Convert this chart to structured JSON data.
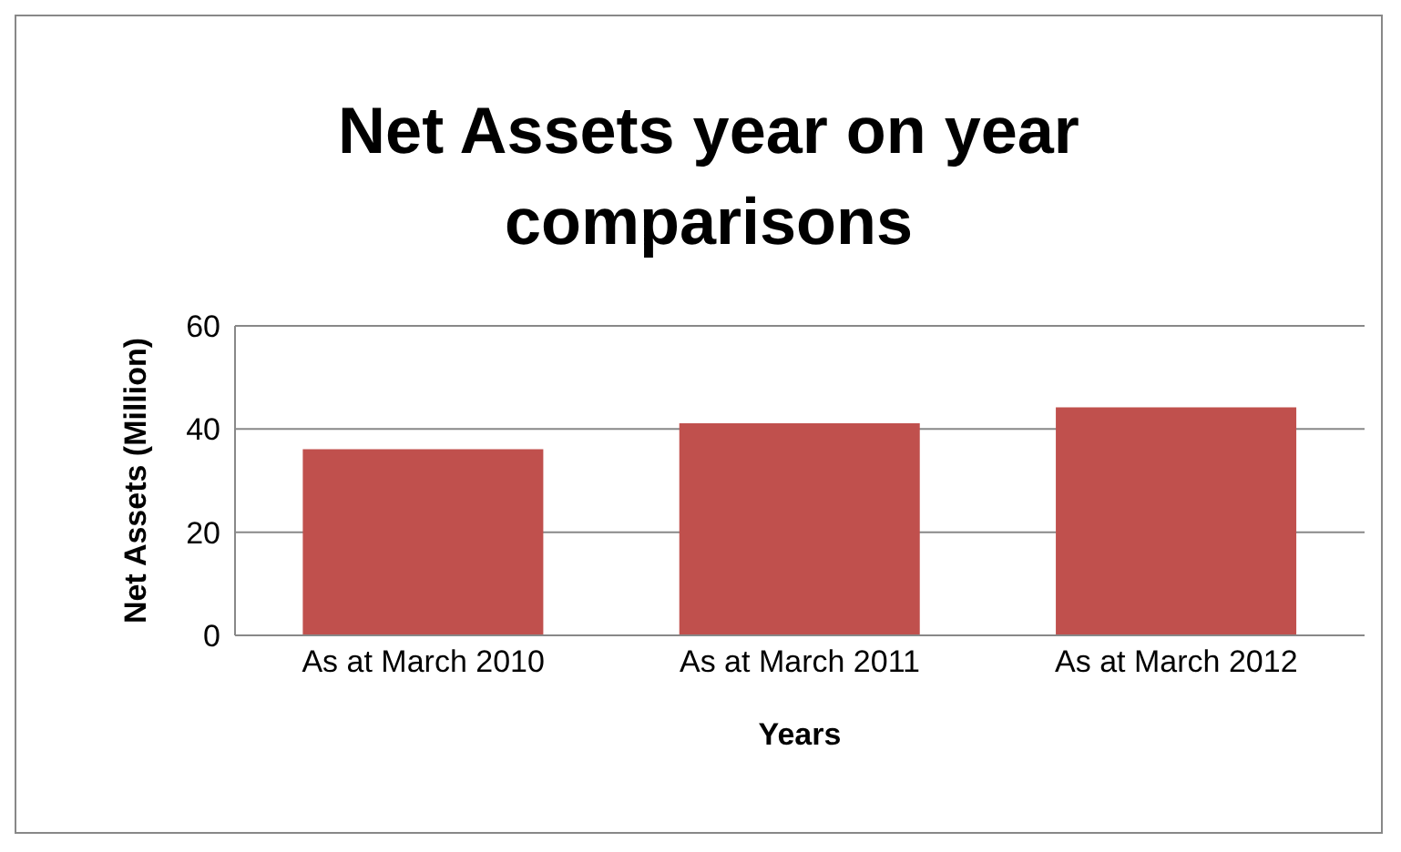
{
  "chart_data": {
    "type": "bar",
    "title": "Net Assets year on year comparisons",
    "xlabel": "Years",
    "ylabel": "Net Assets (Million)",
    "categories": [
      "As at March 2010",
      "As at March 2011",
      "As at March 2012"
    ],
    "values": [
      36.1,
      41.1,
      44.2
    ],
    "color": "#c0504d",
    "ylim": [
      0,
      60
    ],
    "yticks": [
      0,
      20,
      40,
      60
    ],
    "grid": "y"
  }
}
